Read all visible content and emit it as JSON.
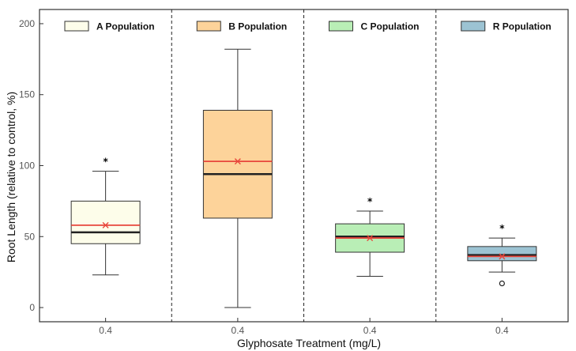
{
  "chart_data": {
    "type": "box",
    "title": "",
    "xlabel": "Glyphosate Treatment (mg/L)",
    "ylabel": "Root Length (relative to control, %)",
    "ylim": [
      -10,
      210
    ],
    "yticks": [
      0,
      50,
      100,
      150,
      200
    ],
    "grid": false,
    "panel_separators": "dashed",
    "mean_color": "#e8463c",
    "median_color": "#222222",
    "series": [
      {
        "name": "A Population",
        "x_label": "0.4",
        "color": "#fdfdea",
        "whisker_low": 23,
        "q1": 45,
        "median": 53,
        "mean": 58,
        "q3": 75,
        "whisker_high": 96,
        "significance": "*",
        "outliers": []
      },
      {
        "name": "B Population",
        "x_label": "0.4",
        "color": "#fdd39a",
        "whisker_low": 0,
        "q1": 63,
        "median": 94,
        "mean": 103,
        "q3": 139,
        "whisker_high": 182,
        "significance": "",
        "outliers": []
      },
      {
        "name": "C Population",
        "x_label": "0.4",
        "color": "#b9eeb6",
        "whisker_low": 22,
        "q1": 39,
        "median": 50,
        "mean": 49,
        "q3": 59,
        "whisker_high": 68,
        "significance": "*",
        "outliers": []
      },
      {
        "name": "R Population",
        "x_label": "0.4",
        "color": "#9cc3d3",
        "whisker_low": 25,
        "q1": 33,
        "median": 37,
        "mean": 36,
        "q3": 43,
        "whisker_high": 49,
        "significance": "*",
        "outliers": [
          17
        ]
      }
    ]
  }
}
